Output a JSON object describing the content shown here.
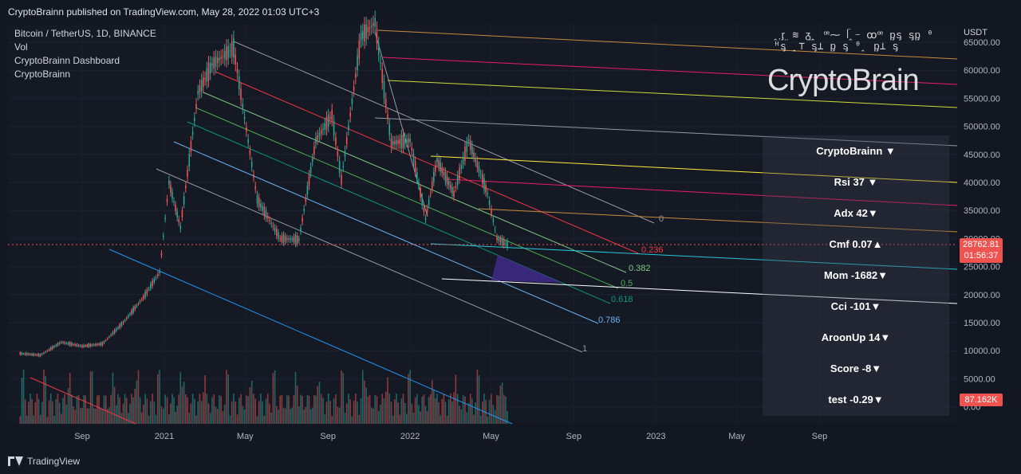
{
  "header": {
    "published": "CryptoBrainn published on TradingView.com, May 28, 2022 01:03 UTC+3"
  },
  "legend": {
    "symbol": "Bitcoin / TetherUS, 1D, BINANCE",
    "vol": "Vol",
    "dashboard": "CryptoBrainn Dashboard",
    "author": "CryptoBrainn"
  },
  "footer": {
    "brand": "TradingView"
  },
  "watermark": {
    "text": "CryptoBrain"
  },
  "dashboard": {
    "title": "CryptoBrainn ▼",
    "rows": [
      "Rsi  37 ▼",
      "Adx  42▼",
      "Cmf 0.07▲",
      "Mom  -1682▼",
      "Cci   -101▼",
      "AroonUp 14▼",
      "Score  -8▼",
      "test  -0.29▼"
    ]
  },
  "chart_data": {
    "type": "line",
    "title": "",
    "yaxis": {
      "unit": "USDT",
      "ticks": [
        "65000.00",
        "60000.00",
        "55000.00",
        "50000.00",
        "45000.00",
        "40000.00",
        "35000.00",
        "30000.00",
        "25000.00",
        "20000.00",
        "15000.00",
        "10000.00",
        "5000.00",
        "0.00"
      ],
      "range": [
        0,
        67000
      ]
    },
    "xaxis": {
      "ticks": [
        "Sep",
        "2021",
        "May",
        "Sep",
        "2022",
        "May",
        "Sep",
        "2023",
        "May",
        "Sep"
      ]
    },
    "current_price": {
      "value": "28762.81",
      "countdown": "01:56:37"
    },
    "volume_label": "87.162K",
    "series": [
      {
        "values": [
          {
            "date": "2020-06-01",
            "close": 9500
          },
          {
            "date": "2020-07-01",
            "close": 9200
          },
          {
            "date": "2020-08-01",
            "close": 11500
          },
          {
            "date": "2020-09-01",
            "close": 10800
          },
          {
            "date": "2020-10-01",
            "close": 11200
          },
          {
            "date": "2020-11-01",
            "close": 15000
          },
          {
            "date": "2020-12-01",
            "close": 19500
          },
          {
            "date": "2020-12-25",
            "close": 24000
          },
          {
            "date": "2021-01-08",
            "close": 40000
          },
          {
            "date": "2021-01-25",
            "close": 32000
          },
          {
            "date": "2021-02-20",
            "close": 56000
          },
          {
            "date": "2021-03-13",
            "close": 61000
          },
          {
            "date": "2021-04-14",
            "close": 64000
          },
          {
            "date": "2021-05-19",
            "close": 37000
          },
          {
            "date": "2021-06-22",
            "close": 30000
          },
          {
            "date": "2021-07-20",
            "close": 29800
          },
          {
            "date": "2021-08-14",
            "close": 47500
          },
          {
            "date": "2021-09-07",
            "close": 52000
          },
          {
            "date": "2021-09-21",
            "close": 40500
          },
          {
            "date": "2021-10-20",
            "close": 66000
          },
          {
            "date": "2021-11-10",
            "close": 68500
          },
          {
            "date": "2021-12-04",
            "close": 47000
          },
          {
            "date": "2022-01-01",
            "close": 47500
          },
          {
            "date": "2022-01-24",
            "close": 33500
          },
          {
            "date": "2022-02-10",
            "close": 44000
          },
          {
            "date": "2022-03-07",
            "close": 38000
          },
          {
            "date": "2022-03-29",
            "close": 47500
          },
          {
            "date": "2022-04-26",
            "close": 38000
          },
          {
            "date": "2022-05-10",
            "close": 30000
          },
          {
            "date": "2022-05-28",
            "close": 28762
          }
        ]
      }
    ],
    "fib_levels": [
      "0",
      "0.236",
      "0.382",
      "0.5",
      "0.618",
      "0.786",
      "1"
    ],
    "colors": {
      "fib_0": "#9598a1",
      "fib_0236": "#f23645",
      "fib_0382": "#81c784",
      "fib_05": "#4caf50",
      "fib_0618": "#089981",
      "fib_0786": "#64b5f6",
      "fib_1": "#9598a1",
      "up": "#26a69a",
      "down": "#ef5350"
    }
  }
}
